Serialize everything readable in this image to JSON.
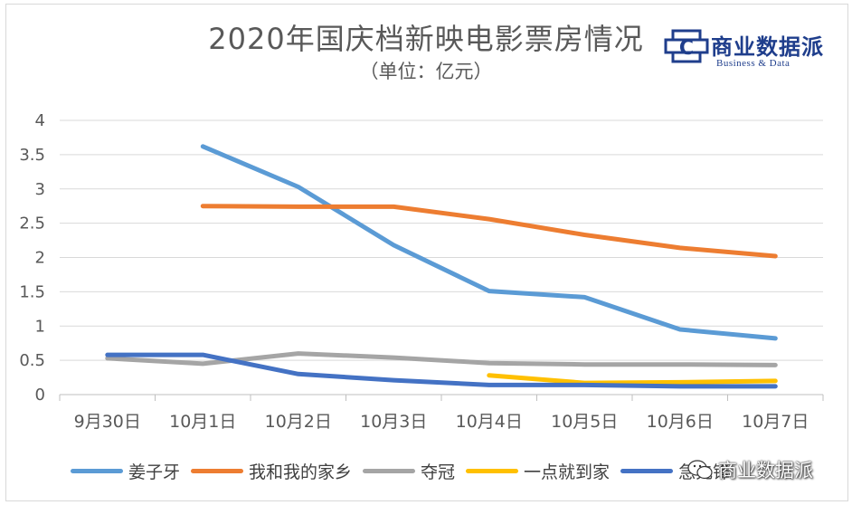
{
  "title": "2020年国庆档新映电影票房情况",
  "subtitle": "（单位：亿元）",
  "logo": {
    "name": "商业数据派",
    "sub": "Business & Data",
    "glyph": "C"
  },
  "watermark": {
    "text": "商业数据派",
    "icon": "wechat-icon"
  },
  "colors": {
    "accent": "#1f3e8c"
  },
  "chart_data": {
    "type": "line",
    "categories": [
      "9月30日",
      "10月1日",
      "10月2日",
      "10月3日",
      "10月4日",
      "10月5日",
      "10月6日",
      "10月7日"
    ],
    "ylim": [
      0,
      4
    ],
    "yticks": [
      0,
      0.5,
      1,
      1.5,
      2,
      2.5,
      3,
      3.5,
      4
    ],
    "ytick_labels": [
      "0",
      "0.5",
      "1",
      "1.5",
      "2",
      "2.5",
      "3",
      "3.5",
      "4"
    ],
    "grid": true,
    "legend_position": "bottom",
    "series": [
      {
        "name": "姜子牙",
        "color": "#5b9bd5",
        "values": [
          null,
          3.62,
          3.03,
          2.18,
          1.51,
          1.42,
          0.95,
          0.82
        ]
      },
      {
        "name": "我和我的家乡",
        "color": "#ed7d31",
        "values": [
          null,
          2.75,
          2.74,
          2.74,
          2.56,
          2.33,
          2.14,
          2.02
        ]
      },
      {
        "name": "夺冠",
        "color": "#a5a5a5",
        "values": [
          0.53,
          0.45,
          0.6,
          0.54,
          0.46,
          0.44,
          0.44,
          0.43
        ]
      },
      {
        "name": "一点就到家",
        "color": "#ffc000",
        "values": [
          null,
          null,
          null,
          null,
          0.28,
          0.17,
          0.18,
          0.2
        ]
      },
      {
        "name": "急先锋",
        "color": "#4472c4",
        "values": [
          0.58,
          0.58,
          0.3,
          0.21,
          0.14,
          0.14,
          0.12,
          0.12
        ]
      }
    ]
  }
}
